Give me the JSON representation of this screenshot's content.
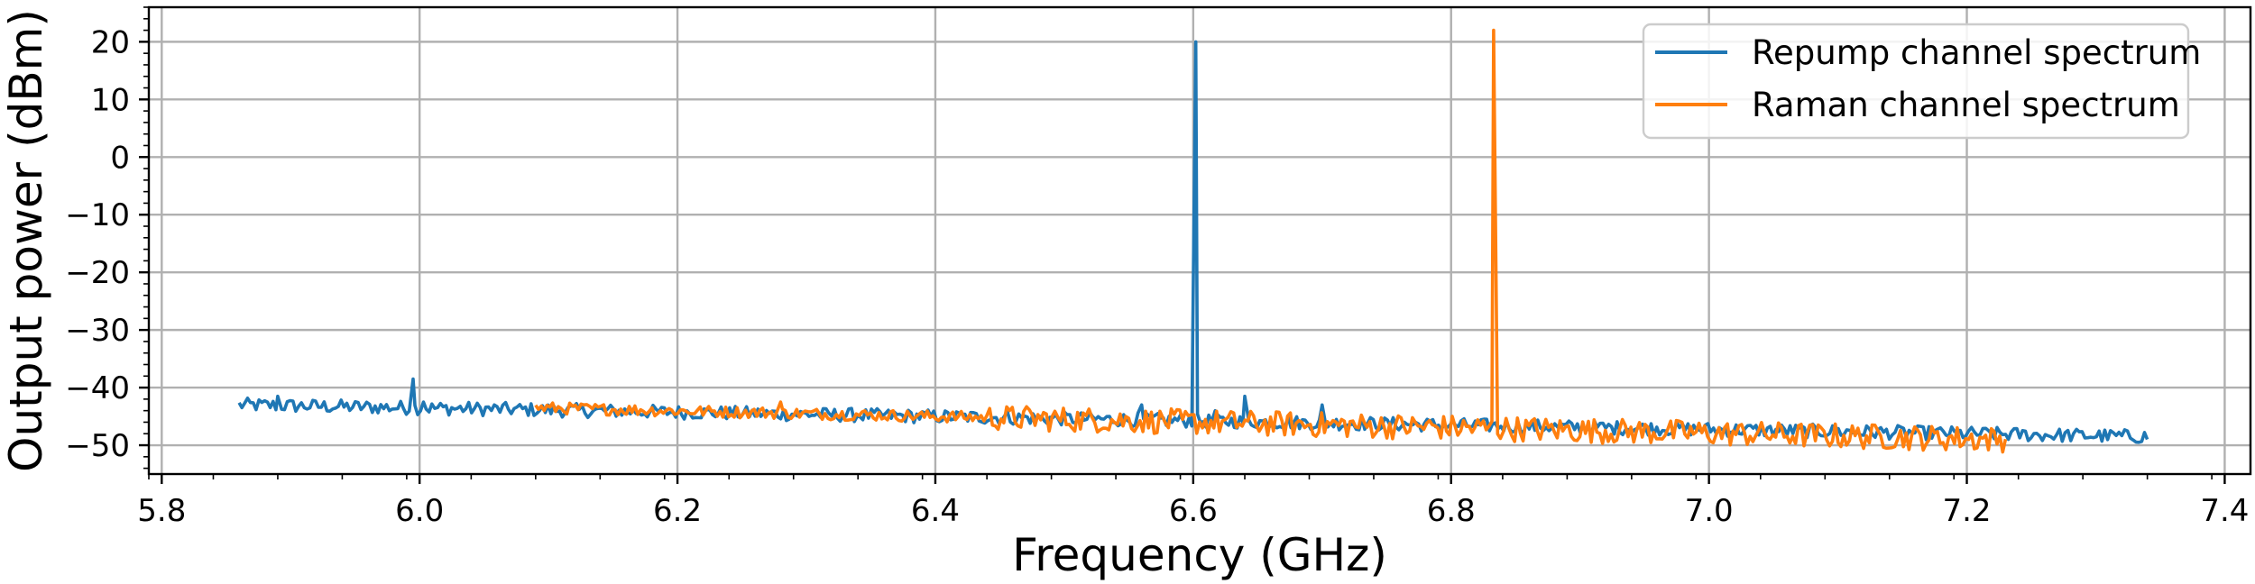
{
  "chart_data": {
    "type": "line",
    "xlabel": "Frequency (GHz)",
    "ylabel": "Output power (dBm)",
    "xlim": [
      5.79,
      7.42
    ],
    "ylim": [
      -55,
      26
    ],
    "x_ticks": [
      5.8,
      6.0,
      6.2,
      6.4,
      6.6,
      6.8,
      7.0,
      7.2,
      7.4
    ],
    "x_tick_labels": [
      "5.8",
      "6.0",
      "6.2",
      "6.4",
      "6.6",
      "6.8",
      "7.0",
      "7.2",
      "7.4"
    ],
    "y_ticks": [
      20,
      10,
      0,
      -10,
      -20,
      -30,
      -40,
      -50
    ],
    "y_tick_labels": [
      "20",
      "10",
      "0",
      "−10",
      "−20",
      "−30",
      "−40",
      "−50"
    ],
    "grid": true,
    "legend_position": "top-right",
    "series": [
      {
        "name": "Repump channel spectrum",
        "color": "#1f77b4",
        "x_range": [
          5.86,
          7.34
        ],
        "baseline_start": -43,
        "baseline_end": -48.5,
        "noise": 1.2,
        "features": [
          {
            "x": 5.89,
            "y": -41.5
          },
          {
            "x": 5.995,
            "y": -38.5
          },
          {
            "x": 6.003,
            "y": -42.5
          },
          {
            "x": 6.56,
            "y": -43
          },
          {
            "x": 6.602,
            "y": 20
          },
          {
            "x": 6.617,
            "y": -44
          },
          {
            "x": 6.64,
            "y": -41.5
          },
          {
            "x": 6.7,
            "y": -43
          }
        ]
      },
      {
        "name": "Raman channel spectrum",
        "color": "#ff7f0e",
        "x_range": [
          6.09,
          7.23
        ],
        "baseline_start": -43.5,
        "baseline_end": -49,
        "noise": 1.0,
        "dense_noise_from": 6.44,
        "dense_noise": 2.2,
        "features": [
          {
            "x": 6.28,
            "y": -42.5
          },
          {
            "x": 6.833,
            "y": 22
          }
        ]
      }
    ]
  }
}
